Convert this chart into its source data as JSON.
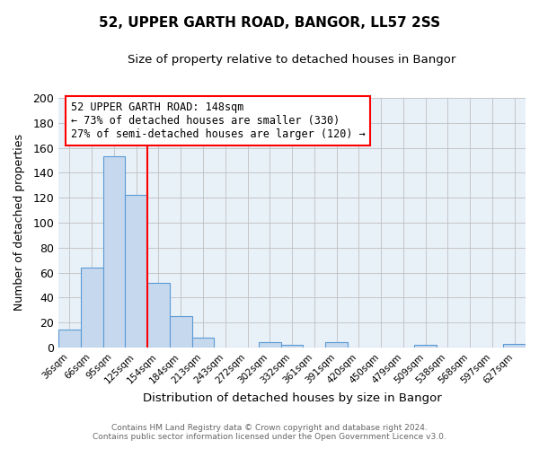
{
  "title": "52, UPPER GARTH ROAD, BANGOR, LL57 2SS",
  "subtitle": "Size of property relative to detached houses in Bangor",
  "xlabel": "Distribution of detached houses by size in Bangor",
  "ylabel": "Number of detached properties",
  "bar_labels": [
    "36sqm",
    "66sqm",
    "95sqm",
    "125sqm",
    "154sqm",
    "184sqm",
    "213sqm",
    "243sqm",
    "272sqm",
    "302sqm",
    "332sqm",
    "361sqm",
    "391sqm",
    "420sqm",
    "450sqm",
    "479sqm",
    "509sqm",
    "538sqm",
    "568sqm",
    "597sqm",
    "627sqm"
  ],
  "bar_values": [
    14,
    64,
    153,
    122,
    52,
    25,
    8,
    0,
    0,
    4,
    2,
    0,
    4,
    0,
    0,
    0,
    2,
    0,
    0,
    0,
    3
  ],
  "bar_color": "#c5d8ed",
  "bar_edgecolor": "#5b9bd5",
  "ylim": [
    0,
    200
  ],
  "yticks": [
    0,
    20,
    40,
    60,
    80,
    100,
    120,
    140,
    160,
    180,
    200
  ],
  "vline_color": "red",
  "annotation_line1": "52 UPPER GARTH ROAD: 148sqm",
  "annotation_line2": "← 73% of detached houses are smaller (330)",
  "annotation_line3": "27% of semi-detached houses are larger (120) →",
  "annotation_box_edgecolor": "red",
  "annotation_fontsize": 8.5,
  "title_fontsize": 11,
  "subtitle_fontsize": 9.5,
  "footer1": "Contains HM Land Registry data © Crown copyright and database right 2024.",
  "footer2": "Contains public sector information licensed under the Open Government Licence v3.0.",
  "grid_color": "#c0c0c0",
  "background_color": "#e8f0f8"
}
